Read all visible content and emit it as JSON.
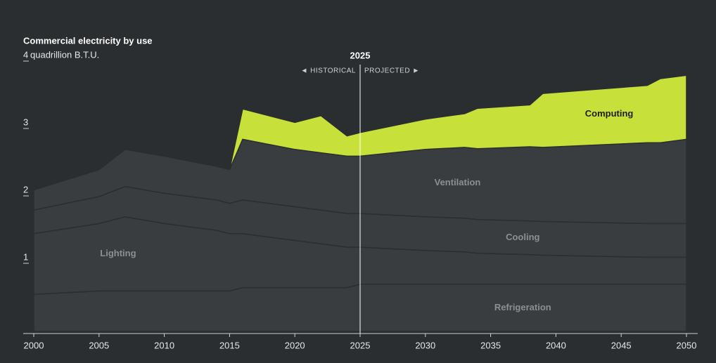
{
  "chart_data": {
    "type": "stacked-area",
    "title": "Commercial electricity by use",
    "y_label": "quadrillion B.T.U.",
    "divider": 2025,
    "divider_left": "◄ HISTORICAL",
    "divider_right": "PROJECTED ►",
    "x": [
      2000,
      2005,
      2007,
      2010,
      2014,
      2015,
      2016,
      2020,
      2022,
      2024,
      2025,
      2030,
      2033,
      2034,
      2038,
      2039,
      2047,
      2048,
      2050
    ],
    "series": [
      {
        "name": "Refrigeration",
        "color": "#3a3d40",
        "values": [
          0.55,
          0.6,
          0.6,
          0.6,
          0.6,
          0.6,
          0.65,
          0.65,
          0.65,
          0.65,
          0.7,
          0.7,
          0.7,
          0.7,
          0.7,
          0.7,
          0.7,
          0.7,
          0.7
        ]
      },
      {
        "name": "Lighting",
        "color": "#3a3d40",
        "values": [
          0.9,
          1.0,
          1.1,
          1.0,
          0.9,
          0.85,
          0.8,
          0.7,
          0.65,
          0.6,
          0.55,
          0.5,
          0.48,
          0.46,
          0.44,
          0.43,
          0.4,
          0.4,
          0.4
        ]
      },
      {
        "name": "Cooling",
        "color": "#3a3d40",
        "values": [
          0.35,
          0.4,
          0.45,
          0.45,
          0.45,
          0.45,
          0.5,
          0.5,
          0.5,
          0.5,
          0.5,
          0.5,
          0.5,
          0.5,
          0.5,
          0.5,
          0.5,
          0.5,
          0.5
        ]
      },
      {
        "name": "Ventilation",
        "color": "#3a3d40",
        "values": [
          0.3,
          0.4,
          0.55,
          0.55,
          0.5,
          0.5,
          0.9,
          0.85,
          0.85,
          0.85,
          0.85,
          1.0,
          1.05,
          1.05,
          1.1,
          1.1,
          1.2,
          1.2,
          1.25
        ]
      },
      {
        "name": "Computing",
        "color": "#c8e03a",
        "values": [
          0,
          0,
          0,
          0,
          0,
          0,
          0.45,
          0.4,
          0.55,
          0.3,
          0.35,
          0.45,
          0.5,
          0.6,
          0.62,
          0.8,
          0.85,
          0.95,
          0.95
        ]
      }
    ],
    "xlim": [
      2000,
      2050
    ],
    "xticks": [
      2000,
      2005,
      2010,
      2015,
      2020,
      2025,
      2030,
      2035,
      2040,
      2045,
      2050
    ],
    "ylim": [
      0,
      4
    ],
    "yticks": [
      1,
      2,
      3,
      4
    ]
  }
}
